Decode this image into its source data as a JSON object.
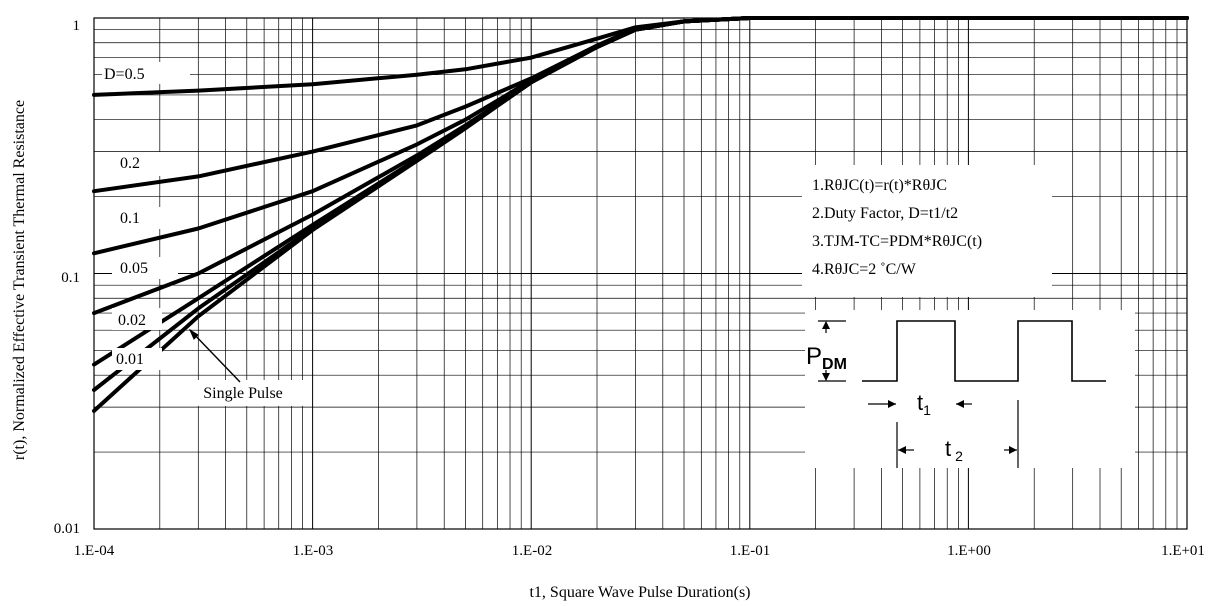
{
  "chart_data": {
    "type": "line",
    "title": "",
    "xlabel": "t1, Square Wave Pulse Duration(s)",
    "ylabel": "r(t), Normalized Effective Transient Thermal Resistance",
    "x_scale": "log",
    "y_scale": "log",
    "xlim": [
      0.0001,
      10
    ],
    "ylim": [
      0.01,
      1
    ],
    "grid": true,
    "x_tick_labels": [
      "1.E-04",
      "1.E-03",
      "1.E-02",
      "1.E-01",
      "1.E+00",
      "1.E+01"
    ],
    "y_tick_labels": [
      "0.01",
      "0.1",
      "1"
    ],
    "series": [
      {
        "name": "D=0.5",
        "x": [
          0.0001,
          0.0003,
          0.001,
          0.003,
          0.005,
          0.01,
          0.02,
          0.03,
          0.05,
          0.1,
          1,
          10
        ],
        "y": [
          0.5,
          0.52,
          0.55,
          0.6,
          0.63,
          0.7,
          0.83,
          0.92,
          0.97,
          1.0,
          1.0,
          1.0
        ]
      },
      {
        "name": "0.2",
        "x": [
          0.0001,
          0.0003,
          0.001,
          0.003,
          0.005,
          0.01,
          0.02,
          0.03,
          0.05,
          0.1,
          1,
          10
        ],
        "y": [
          0.21,
          0.24,
          0.3,
          0.38,
          0.45,
          0.58,
          0.78,
          0.91,
          0.97,
          1.0,
          1.0,
          1.0
        ]
      },
      {
        "name": "0.1",
        "x": [
          0.0001,
          0.0003,
          0.001,
          0.003,
          0.005,
          0.01,
          0.02,
          0.03,
          0.05,
          0.1,
          1,
          10
        ],
        "y": [
          0.12,
          0.15,
          0.21,
          0.32,
          0.4,
          0.57,
          0.77,
          0.9,
          0.97,
          1.0,
          1.0,
          1.0
        ]
      },
      {
        "name": "0.05",
        "x": [
          0.0001,
          0.0003,
          0.001,
          0.003,
          0.005,
          0.01,
          0.02,
          0.03,
          0.05,
          0.1,
          1,
          10
        ],
        "y": [
          0.07,
          0.1,
          0.17,
          0.29,
          0.38,
          0.56,
          0.77,
          0.9,
          0.97,
          1.0,
          1.0,
          1.0
        ]
      },
      {
        "name": "0.02",
        "x": [
          0.0001,
          0.0003,
          0.001,
          0.003,
          0.005,
          0.01,
          0.02,
          0.03,
          0.05,
          0.1,
          1,
          10
        ],
        "y": [
          0.044,
          0.08,
          0.155,
          0.28,
          0.375,
          0.56,
          0.77,
          0.9,
          0.97,
          1.0,
          1.0,
          1.0
        ]
      },
      {
        "name": "0.01",
        "x": [
          0.0001,
          0.0003,
          0.001,
          0.003,
          0.005,
          0.01,
          0.02,
          0.03,
          0.05,
          0.1,
          1,
          10
        ],
        "y": [
          0.035,
          0.073,
          0.15,
          0.278,
          0.372,
          0.56,
          0.77,
          0.9,
          0.97,
          1.0,
          1.0,
          1.0
        ]
      },
      {
        "name": "Single Pulse",
        "x": [
          0.0001,
          0.0003,
          0.001,
          0.003,
          0.005,
          0.01,
          0.02,
          0.03,
          0.05,
          0.1,
          1,
          10
        ],
        "y": [
          0.029,
          0.068,
          0.148,
          0.276,
          0.37,
          0.56,
          0.77,
          0.9,
          0.97,
          1.0,
          1.0,
          1.0
        ]
      }
    ],
    "notes": [
      "1.RθJC(t)=r(t)*RθJC",
      "2.Duty Factor, D=t1/t2",
      "3.TJM-TC=PDM*RθJC(t)",
      "4.RθJC=2 ˚C/W"
    ],
    "waveform_labels": {
      "pdm": "P",
      "pdm_sub": "DM",
      "t1": "t",
      "t1_sub": "1",
      "t2": "t",
      "t2_sub": "2"
    }
  }
}
